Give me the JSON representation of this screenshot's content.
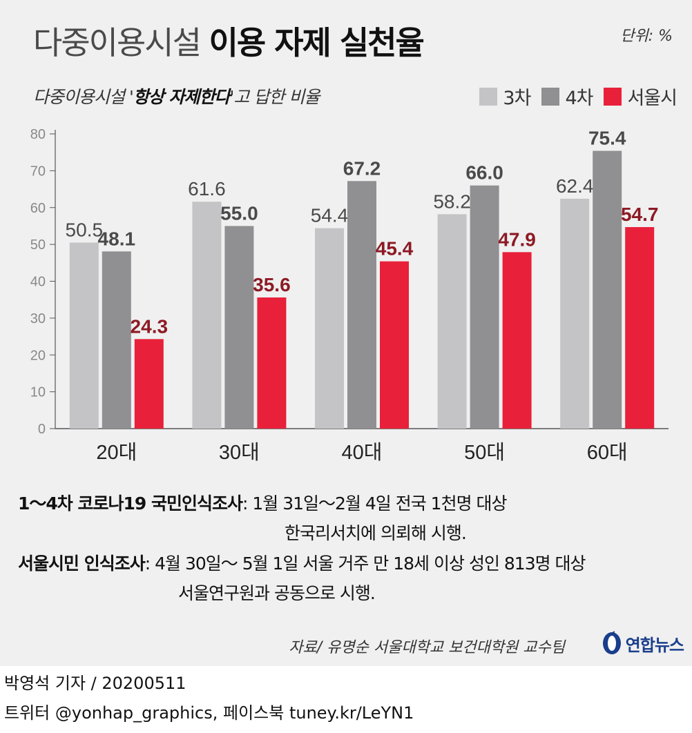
{
  "header": {
    "title_light": "다중이용시설",
    "title_bold": "이용 자제 실천율",
    "unit": "단위: %"
  },
  "subtitle": {
    "prefix": "다중이용시설 '",
    "emphasis": "항상 자제한다",
    "suffix": "'고 답한 비율"
  },
  "colors": {
    "series_3": "#c4c4c6",
    "series_4": "#909092",
    "series_seoul": "#e8203a",
    "label_grey": "#4a4a4a",
    "label_red": "#8c1a24",
    "axis": "#555555"
  },
  "chart_data": {
    "type": "bar",
    "categories": [
      "20대",
      "30대",
      "40대",
      "50대",
      "60대"
    ],
    "series": [
      {
        "name": "3차",
        "values": [
          50.5,
          61.6,
          54.4,
          58.2,
          62.4
        ]
      },
      {
        "name": "4차",
        "values": [
          48.1,
          55.0,
          67.2,
          66.0,
          75.4
        ]
      },
      {
        "name": "서울시",
        "values": [
          24.3,
          35.6,
          45.4,
          47.9,
          54.7
        ]
      }
    ],
    "value_labels": [
      [
        "50.5",
        "61.6",
        "54.4",
        "58.2",
        "62.4"
      ],
      [
        "48.1",
        "55.0",
        "67.2",
        "66.0",
        "75.4"
      ],
      [
        "24.3",
        "35.6",
        "45.4",
        "47.9",
        "54.7"
      ]
    ],
    "ylim": [
      0,
      80
    ],
    "yticks": [
      0,
      10,
      20,
      30,
      40,
      50,
      60,
      70,
      80
    ],
    "grid": false,
    "legend": "top-right"
  },
  "notes": [
    {
      "key": "1～4차 코로나19 국민인식조사",
      "text": ": 1월 31일～2월 4일 전국 1천명 대상",
      "cont": "한국리서치에 의뢰해 시행."
    },
    {
      "key": "서울시민 인식조사",
      "text": ": 4월 30일～ 5월 1일 서울 거주 만 18세 이상 성인 813명 대상",
      "cont": "서울연구원과 공동으로 시행."
    }
  ],
  "source": "자료/ 유명순 서울대학교 보건대학원 교수팀",
  "brand": "연합뉴스",
  "byline": "박영석 기자 /  20200511",
  "footer": "트위터 @yonhap_graphics, 페이스북 tuney.kr/LeYN1"
}
